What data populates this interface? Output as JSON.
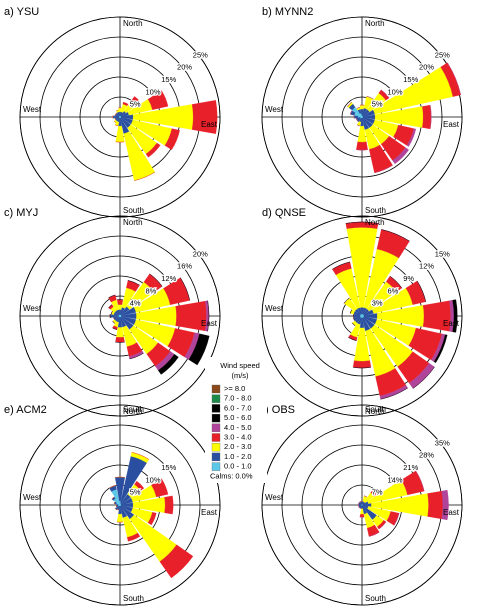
{
  "chart_data": [
    {
      "type": "wind_rose",
      "title": "a) YSU",
      "categories": [
        "North",
        null,
        null,
        null,
        "East",
        null,
        null,
        null,
        "South",
        null,
        null,
        null,
        "West",
        null,
        null,
        null
      ],
      "rlim": [
        0,
        25
      ],
      "rticks": [
        {
          "value": 5,
          "label": "5%"
        },
        {
          "value": 10,
          "label": "10%"
        },
        {
          "value": 15,
          "label": "15%"
        },
        {
          "value": 20,
          "label": "20%"
        },
        {
          "value": 25,
          "label": "25%"
        }
      ],
      "series": [
        {
          "color": "#5bc8e8",
          "values": [
            0.3,
            0.3,
            0.3,
            0.3,
            0.3,
            0.3,
            0.3,
            0.3,
            0.3,
            0.3,
            0.3,
            0.3,
            0.3,
            0.3,
            0.3,
            0.3
          ]
        },
        {
          "color": "#2a4fa0",
          "values": [
            1,
            1,
            1.5,
            2,
            3,
            3,
            3,
            4,
            2,
            1,
            1,
            1,
            1.5,
            1,
            1,
            1
          ]
        },
        {
          "color": "#ffff00",
          "values": [
            1,
            2,
            3,
            6,
            15,
            10,
            8,
            12,
            4,
            1,
            0.5,
            0,
            0,
            0,
            0,
            0.5
          ]
        },
        {
          "color": "#e8202a",
          "values": [
            0,
            0.5,
            1.5,
            4,
            6,
            2,
            1,
            0,
            0,
            0,
            0,
            0,
            0,
            0,
            0,
            0
          ]
        }
      ]
    },
    {
      "type": "wind_rose",
      "title": "b) MYNN2",
      "categories": [
        "North",
        null,
        null,
        null,
        "East",
        null,
        null,
        null,
        "South",
        null,
        null,
        null,
        "West",
        null,
        null,
        null
      ],
      "rlim": [
        0,
        25
      ],
      "rticks": [
        {
          "value": 5,
          "label": "5%"
        },
        {
          "value": 10,
          "label": "10%"
        },
        {
          "value": 15,
          "label": "15%"
        },
        {
          "value": 20,
          "label": "20%"
        },
        {
          "value": 25,
          "label": "25%"
        }
      ],
      "series": [
        {
          "color": "#5bc8e8",
          "values": [
            0.5,
            0.3,
            0.3,
            0.3,
            0.3,
            0.3,
            0.3,
            0.3,
            0.3,
            0.3,
            0.5,
            0.5,
            1,
            2,
            3,
            1
          ]
        },
        {
          "color": "#2a4fa0",
          "values": [
            1.5,
            2,
            2,
            3,
            3,
            3,
            3,
            3,
            2,
            1,
            1,
            1,
            1,
            1,
            1,
            1
          ]
        },
        {
          "color": "#ffff00",
          "values": [
            1,
            3,
            5,
            20,
            12,
            6,
            5,
            5,
            4,
            1,
            0,
            0,
            0,
            0,
            0.5,
            0.5
          ]
        },
        {
          "color": "#e8202a",
          "values": [
            0,
            0,
            1,
            2,
            2,
            4,
            5,
            6,
            2,
            0,
            0,
            0,
            0,
            0,
            0,
            0
          ]
        },
        {
          "color": "#b0449a",
          "values": [
            0,
            0,
            0,
            0,
            0,
            0.5,
            1,
            0,
            0,
            0,
            0,
            0,
            0,
            0,
            0,
            0
          ]
        }
      ]
    },
    {
      "type": "wind_rose",
      "title": "c) MYJ",
      "categories": [
        "North",
        null,
        null,
        null,
        "East",
        null,
        null,
        null,
        "South",
        null,
        null,
        null,
        "West",
        null,
        null,
        null
      ],
      "rlim": [
        0,
        20
      ],
      "rticks": [
        {
          "value": 4,
          "label": "4%"
        },
        {
          "value": 8,
          "label": "8%"
        },
        {
          "value": 12,
          "label": "12%"
        },
        {
          "value": 16,
          "label": "16%"
        },
        {
          "value": 20,
          "label": "20%"
        }
      ],
      "series": [
        {
          "color": "#5bc8e8",
          "values": [
            0.3,
            0.3,
            0.3,
            0.3,
            0.3,
            0.3,
            0.3,
            0.3,
            0.3,
            0.3,
            0.3,
            0.3,
            0.5,
            0.3,
            0.3,
            0.3
          ]
        },
        {
          "color": "#2a4fa0",
          "values": [
            1,
            1.5,
            2,
            3,
            3,
            3,
            3,
            2,
            2,
            1,
            1,
            1,
            1.5,
            1,
            1,
            1
          ]
        },
        {
          "color": "#ffff00",
          "values": [
            1,
            4,
            6,
            7,
            8,
            8,
            6,
            4,
            2,
            1,
            0.5,
            0,
            0,
            0.5,
            1,
            2
          ]
        },
        {
          "color": "#e8202a",
          "values": [
            1,
            1.5,
            2,
            4,
            6,
            4,
            3,
            2,
            1,
            0.5,
            0,
            0,
            0,
            0,
            0.5,
            1
          ]
        },
        {
          "color": "#b0449a",
          "values": [
            0,
            0,
            0,
            0,
            0.5,
            1,
            1,
            0.5,
            0,
            0,
            0,
            0,
            0,
            0,
            0,
            0
          ]
        },
        {
          "color": "#000000",
          "values": [
            0,
            0,
            0,
            0,
            0,
            2,
            1,
            0,
            0,
            0,
            0,
            0,
            0,
            0,
            0,
            0
          ]
        }
      ]
    },
    {
      "type": "wind_rose",
      "title": "d) QNSE",
      "categories": [
        "North",
        null,
        null,
        null,
        "East",
        null,
        null,
        null,
        "South",
        null,
        null,
        null,
        "West",
        null,
        null,
        null
      ],
      "rlim": [
        0,
        15
      ],
      "rticks": [
        {
          "value": 3,
          "label": "3%"
        },
        {
          "value": 6,
          "label": "6%"
        },
        {
          "value": 9,
          "label": "9%"
        },
        {
          "value": 12,
          "label": "12%"
        },
        {
          "value": 15,
          "label": "15%"
        }
      ],
      "series": [
        {
          "color": "#5bc8e8",
          "values": [
            0.3,
            0.3,
            0.3,
            0.3,
            0.3,
            0.3,
            0.3,
            0.3,
            0.3,
            0.3,
            0.3,
            0.3,
            0.3,
            0.3,
            0.3,
            0.3
          ]
        },
        {
          "color": "#2a4fa0",
          "values": [
            1,
            1,
            1,
            1.5,
            2,
            2,
            2,
            2,
            1.5,
            1,
            1,
            1,
            1,
            1,
            1,
            1
          ]
        },
        {
          "color": "#ffff00",
          "values": [
            12,
            9,
            5,
            6,
            7,
            6,
            7,
            7,
            5,
            2,
            0.5,
            0,
            0,
            0.5,
            2,
            6
          ]
        },
        {
          "color": "#e8202a",
          "values": [
            0.8,
            3,
            1,
            2,
            4,
            4,
            3,
            3,
            1,
            0.5,
            0,
            0,
            0,
            0,
            0,
            1
          ]
        },
        {
          "color": "#b0449a",
          "values": [
            0,
            0,
            0,
            0,
            0.5,
            0.5,
            1,
            0.5,
            0,
            0,
            0,
            0,
            0,
            0,
            0,
            0
          ]
        },
        {
          "color": "#000000",
          "values": [
            0,
            0,
            0,
            0,
            0.5,
            0.3,
            0,
            0,
            0,
            0,
            0,
            0,
            0,
            0,
            0,
            0
          ]
        }
      ]
    },
    {
      "type": "wind_rose",
      "title": "e) ACM2",
      "categories": [
        "North",
        null,
        null,
        null,
        "East",
        null,
        null,
        null,
        "South",
        null,
        null,
        null,
        "West",
        null,
        null,
        null
      ],
      "rlim": [
        0,
        25
      ],
      "rticks": [
        {
          "value": 5,
          "label": "5%"
        },
        {
          "value": 10,
          "label": "10%"
        },
        {
          "value": 15,
          "label": "15%"
        },
        {
          "value": 20,
          "label": null
        },
        {
          "value": 25,
          "label": null
        }
      ],
      "series": [
        {
          "color": "#5bc8e8",
          "values": [
            1,
            0.5,
            0.3,
            0.3,
            0.3,
            0.3,
            0.3,
            0.3,
            0.3,
            0.3,
            0.5,
            0.5,
            0.5,
            1,
            2,
            4
          ]
        },
        {
          "color": "#2a4fa0",
          "values": [
            6,
            12,
            3,
            3,
            3,
            3,
            4,
            3,
            2,
            1,
            1,
            0.5,
            0.5,
            0.5,
            0.5,
            1
          ]
        },
        {
          "color": "#ffff00",
          "values": [
            0,
            1,
            3,
            6,
            8,
            5,
            13,
            5,
            2,
            0,
            0,
            0,
            0,
            0,
            0,
            0
          ]
        },
        {
          "color": "#e8202a",
          "values": [
            0,
            0,
            1,
            3,
            2,
            1,
            5,
            1,
            0,
            0,
            0,
            0,
            0,
            0,
            0,
            0
          ]
        }
      ]
    },
    {
      "type": "wind_rose",
      "title": "f) OBS",
      "categories": [
        "North",
        null,
        null,
        null,
        "East",
        null,
        null,
        null,
        "South",
        null,
        null,
        null,
        "West",
        null,
        null,
        null
      ],
      "rlim": [
        0,
        35
      ],
      "rticks": [
        {
          "value": 7,
          "label": "7%"
        },
        {
          "value": 14,
          "label": "14%"
        },
        {
          "value": 21,
          "label": "21%"
        },
        {
          "value": 28,
          "label": "28%"
        },
        {
          "value": 35,
          "label": "35%"
        }
      ],
      "series": [
        {
          "color": "#5bc8e8",
          "values": [
            0.3,
            0.3,
            0.3,
            0.3,
            0.3,
            0.3,
            0.3,
            0.3,
            0.3,
            0.3,
            0.3,
            0.3,
            0.3,
            0.3,
            0.3,
            0.3
          ]
        },
        {
          "color": "#2a4fa0",
          "values": [
            1,
            1,
            1,
            2,
            3,
            2,
            6,
            3,
            1,
            1,
            1,
            1,
            1,
            1,
            1,
            1
          ]
        },
        {
          "color": "#ffff00",
          "values": [
            0,
            2,
            4,
            14,
            20,
            8,
            3,
            5,
            2,
            0,
            0,
            0,
            0,
            0,
            0,
            0
          ]
        },
        {
          "color": "#e8202a",
          "values": [
            0,
            0,
            1,
            6,
            5,
            3,
            1,
            3,
            1,
            0,
            0,
            0,
            0,
            0,
            0,
            0
          ]
        },
        {
          "color": "#b0449a",
          "values": [
            0,
            0,
            0,
            0,
            2,
            0,
            0,
            0,
            0,
            0,
            0,
            0,
            0,
            0,
            0,
            0
          ]
        }
      ]
    }
  ],
  "legend": {
    "title": "Wind speed",
    "unit": "(m/s)",
    "items": [
      {
        "name": ">= 8.0",
        "color": "#8b4a1c"
      },
      {
        "name": "7.0 - 8.0",
        "color": "#1e8a4a"
      },
      {
        "name": "6.0 - 7.0",
        "color": "#000000"
      },
      {
        "name": "5.0 - 6.0",
        "color": "#000000"
      },
      {
        "name": "4.0 - 5.0",
        "color": "#b0449a"
      },
      {
        "name": "3.0 - 4.0",
        "color": "#e8202a"
      },
      {
        "name": "2.0 - 3.0",
        "color": "#ffff00"
      },
      {
        "name": "1.0 - 2.0",
        "color": "#2a4fa0"
      },
      {
        "name": "0.0 - 1.0",
        "color": "#5bc8e8"
      }
    ],
    "calms": "Calms: 0.0%"
  }
}
